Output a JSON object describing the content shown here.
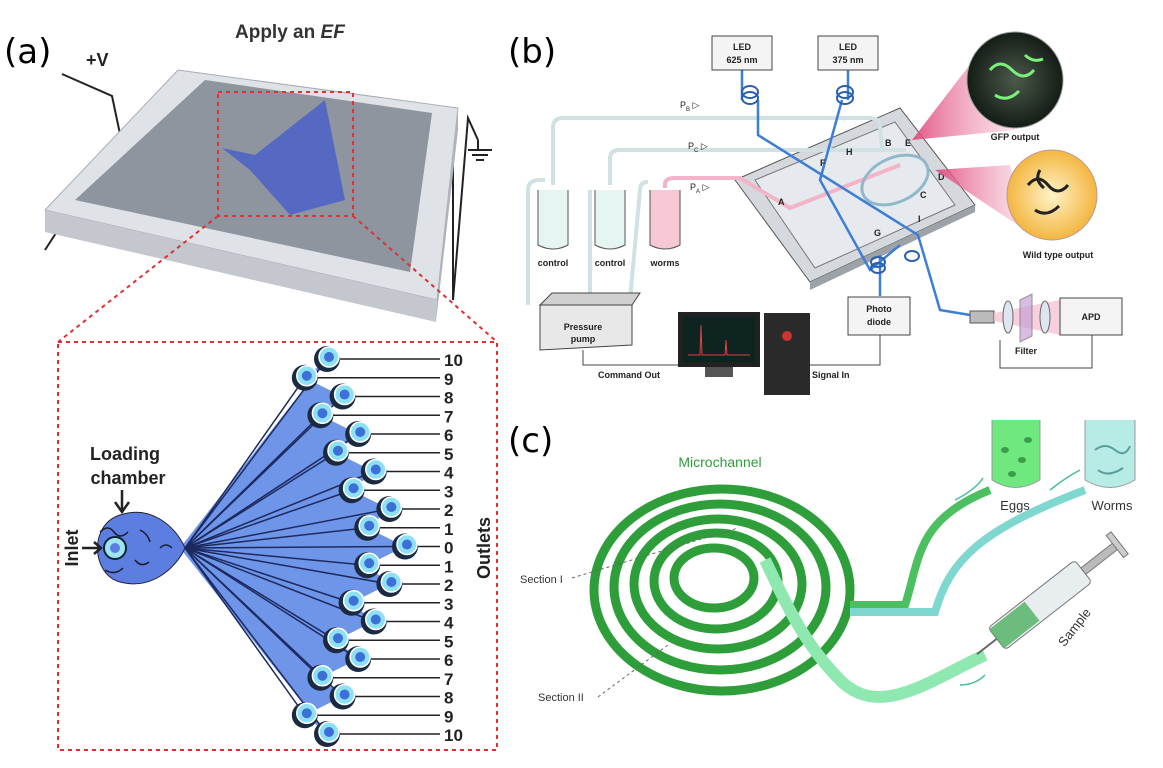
{
  "panel_a": {
    "label": "(a)",
    "title": {
      "text": "Apply an ",
      "emphasis": "EF"
    },
    "voltage": "+V",
    "loading_chamber": [
      "Loading",
      "chamber"
    ],
    "inlet": "Inlet",
    "outlets_label": "Outlets",
    "outlets": [
      "10",
      "9",
      "8",
      "7",
      "6",
      "5",
      "4",
      "3",
      "2",
      "1",
      "0",
      "1",
      "2",
      "3",
      "4",
      "5",
      "6",
      "7",
      "8",
      "9",
      "10"
    ]
  },
  "panel_b": {
    "label": "(b)",
    "leds": [
      {
        "name": "LED",
        "wavelength": "625 nm"
      },
      {
        "name": "LED",
        "wavelength": "375 nm"
      }
    ],
    "pressures": [
      {
        "symbol": "P",
        "subscript": "B"
      },
      {
        "symbol": "P",
        "subscript": "C"
      },
      {
        "symbol": "P",
        "subscript": "A"
      }
    ],
    "chip_points": [
      "A",
      "B",
      "C",
      "D",
      "E",
      "F",
      "G",
      "H",
      "I"
    ],
    "outputs": [
      "GFP output",
      "Wild type output"
    ],
    "reservoirs": [
      "control",
      "control",
      "worms"
    ],
    "pump": [
      "Pressure",
      "pump"
    ],
    "command_out": "Command Out",
    "signal_in": "Signal In",
    "photodiode": [
      "Photo",
      "diode"
    ],
    "filter": "Filter",
    "apd": "APD"
  },
  "panel_c": {
    "label": "(c)",
    "microchannel": "Microchannel",
    "sections": [
      "Section I",
      "Section II"
    ],
    "outputs": [
      "Eggs",
      "Worms"
    ],
    "sample": "Sample"
  }
}
